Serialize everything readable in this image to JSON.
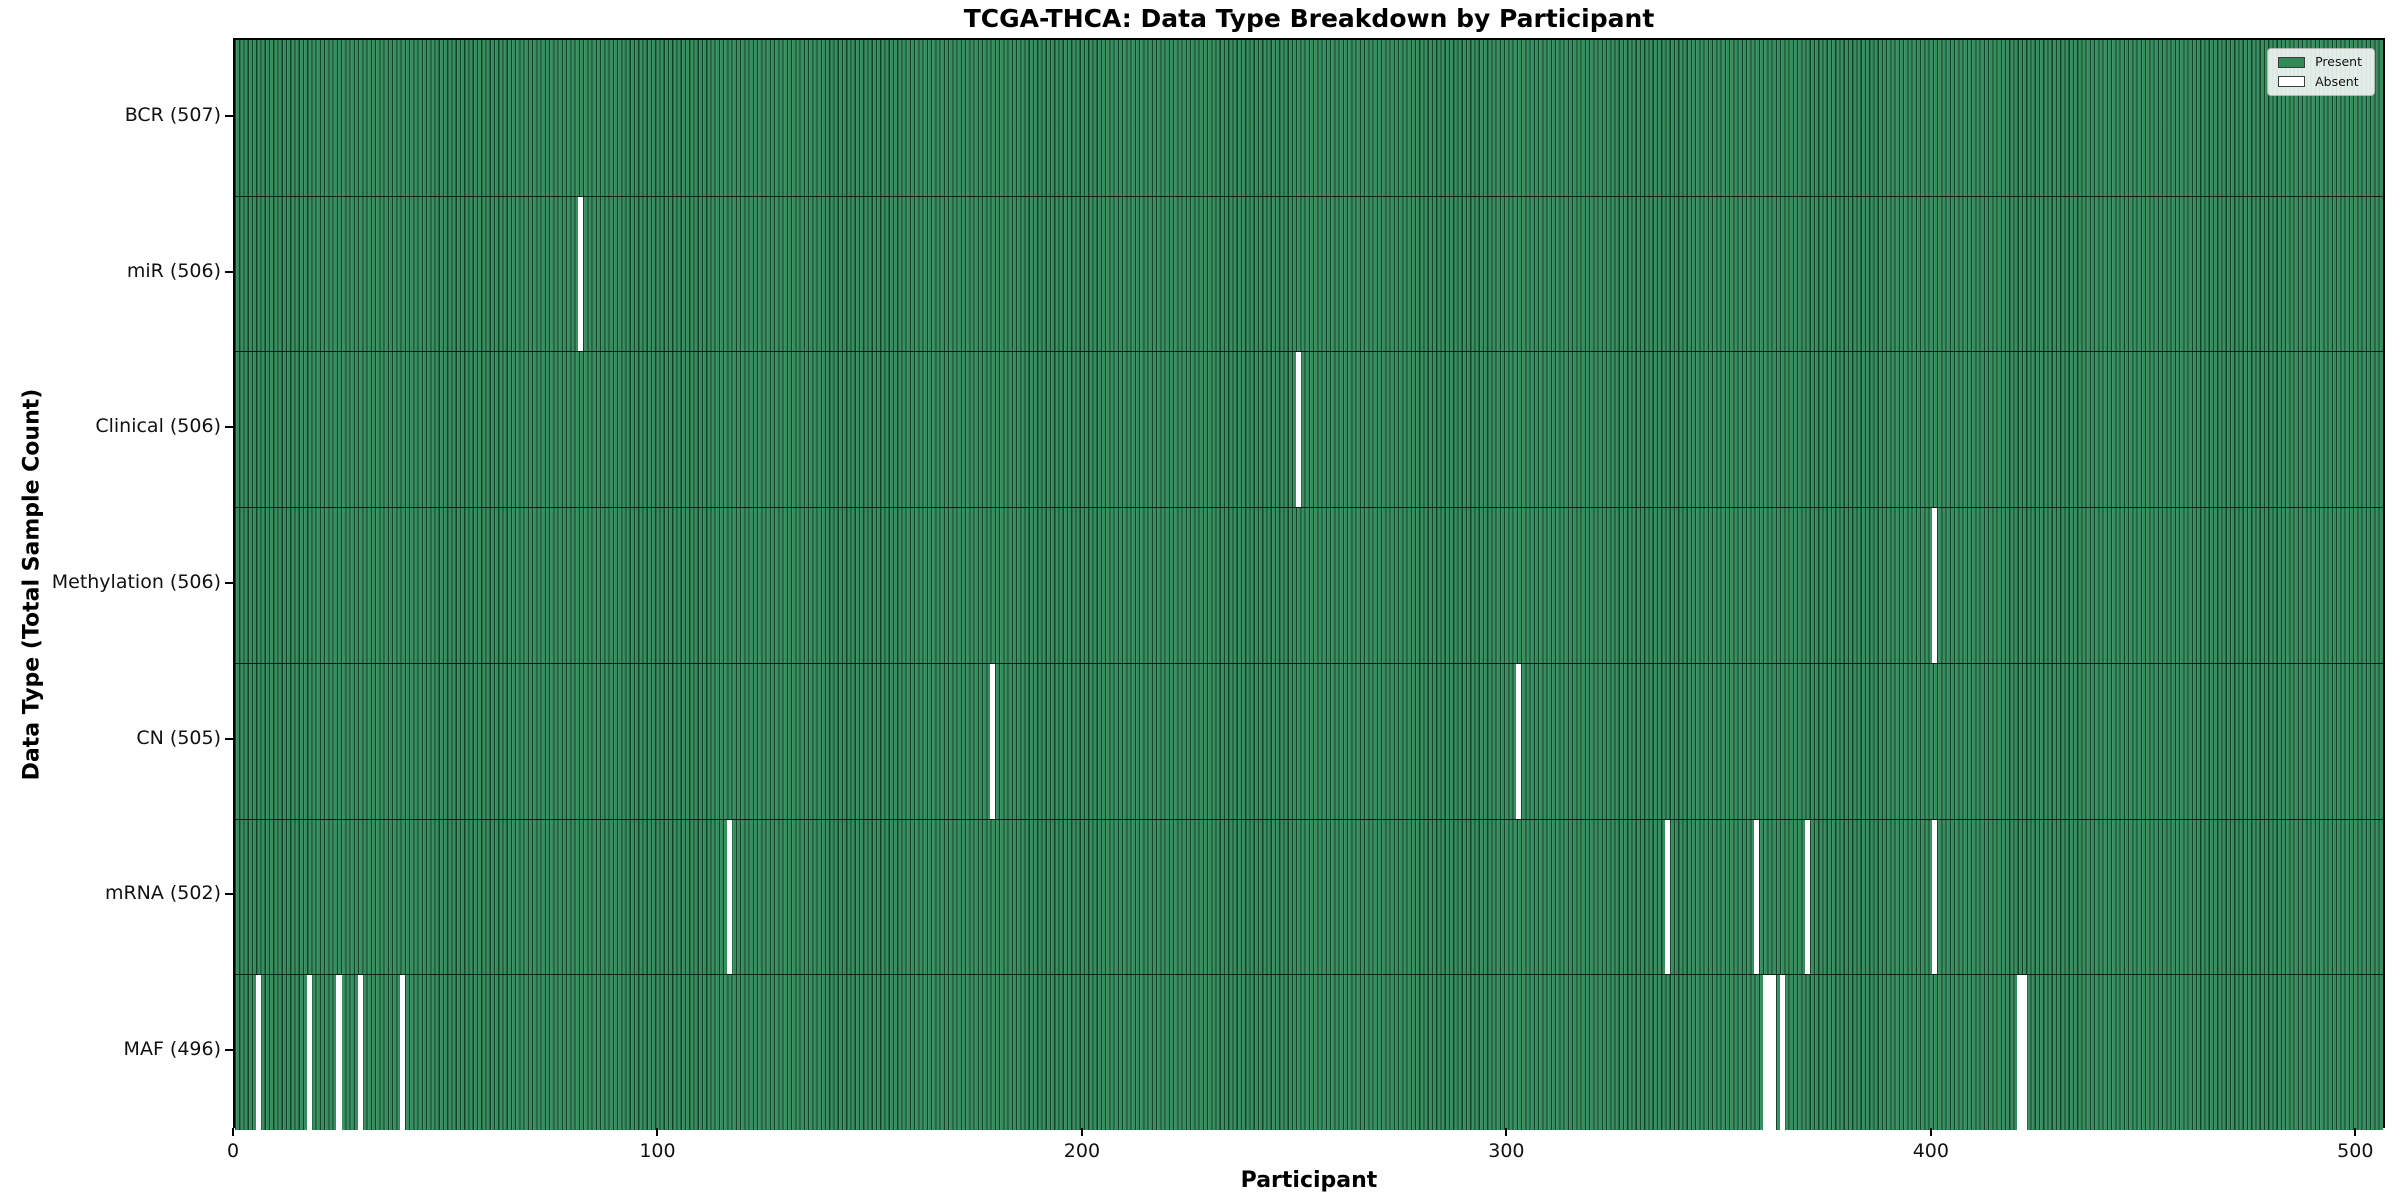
{
  "chart_data": {
    "type": "heatmap",
    "title": "TCGA-THCA: Data Type Breakdown by Participant",
    "xlabel": "Participant",
    "ylabel": "Data Type (Total Sample Count)",
    "n_participants": 507,
    "x_ticks": [
      0,
      100,
      200,
      300,
      400,
      500
    ],
    "xlim": [
      0,
      507
    ],
    "grid": false,
    "legend_position": "upper right",
    "legend": [
      {
        "label": "Present",
        "color": "#2e8b57"
      },
      {
        "label": "Absent",
        "color": "#ffffff"
      }
    ],
    "colors": {
      "present": "#2e8b57",
      "absent": "#ffffff",
      "bar_edge": "#14301f"
    },
    "rows": [
      {
        "label": "BCR (507)",
        "data_type": "BCR",
        "total_count": 507,
        "absent_participants": []
      },
      {
        "label": "miR (506)",
        "data_type": "miR",
        "total_count": 506,
        "absent_participants": [
          81
        ]
      },
      {
        "label": "Clinical (506)",
        "data_type": "Clinical",
        "total_count": 506,
        "absent_participants": [
          250
        ]
      },
      {
        "label": "Methylation (506)",
        "data_type": "Methylation",
        "total_count": 506,
        "absent_participants": [
          400
        ]
      },
      {
        "label": "CN (505)",
        "data_type": "CN",
        "total_count": 505,
        "absent_participants": [
          178,
          302
        ]
      },
      {
        "label": "mRNA (502)",
        "data_type": "mRNA",
        "total_count": 502,
        "absent_participants": [
          116,
          337,
          358,
          370,
          400
        ]
      },
      {
        "label": "MAF (496)",
        "data_type": "MAF",
        "total_count": 496,
        "absent_participants": [
          5,
          17,
          24,
          29,
          39,
          360,
          361,
          362,
          364,
          420,
          421
        ]
      }
    ]
  }
}
